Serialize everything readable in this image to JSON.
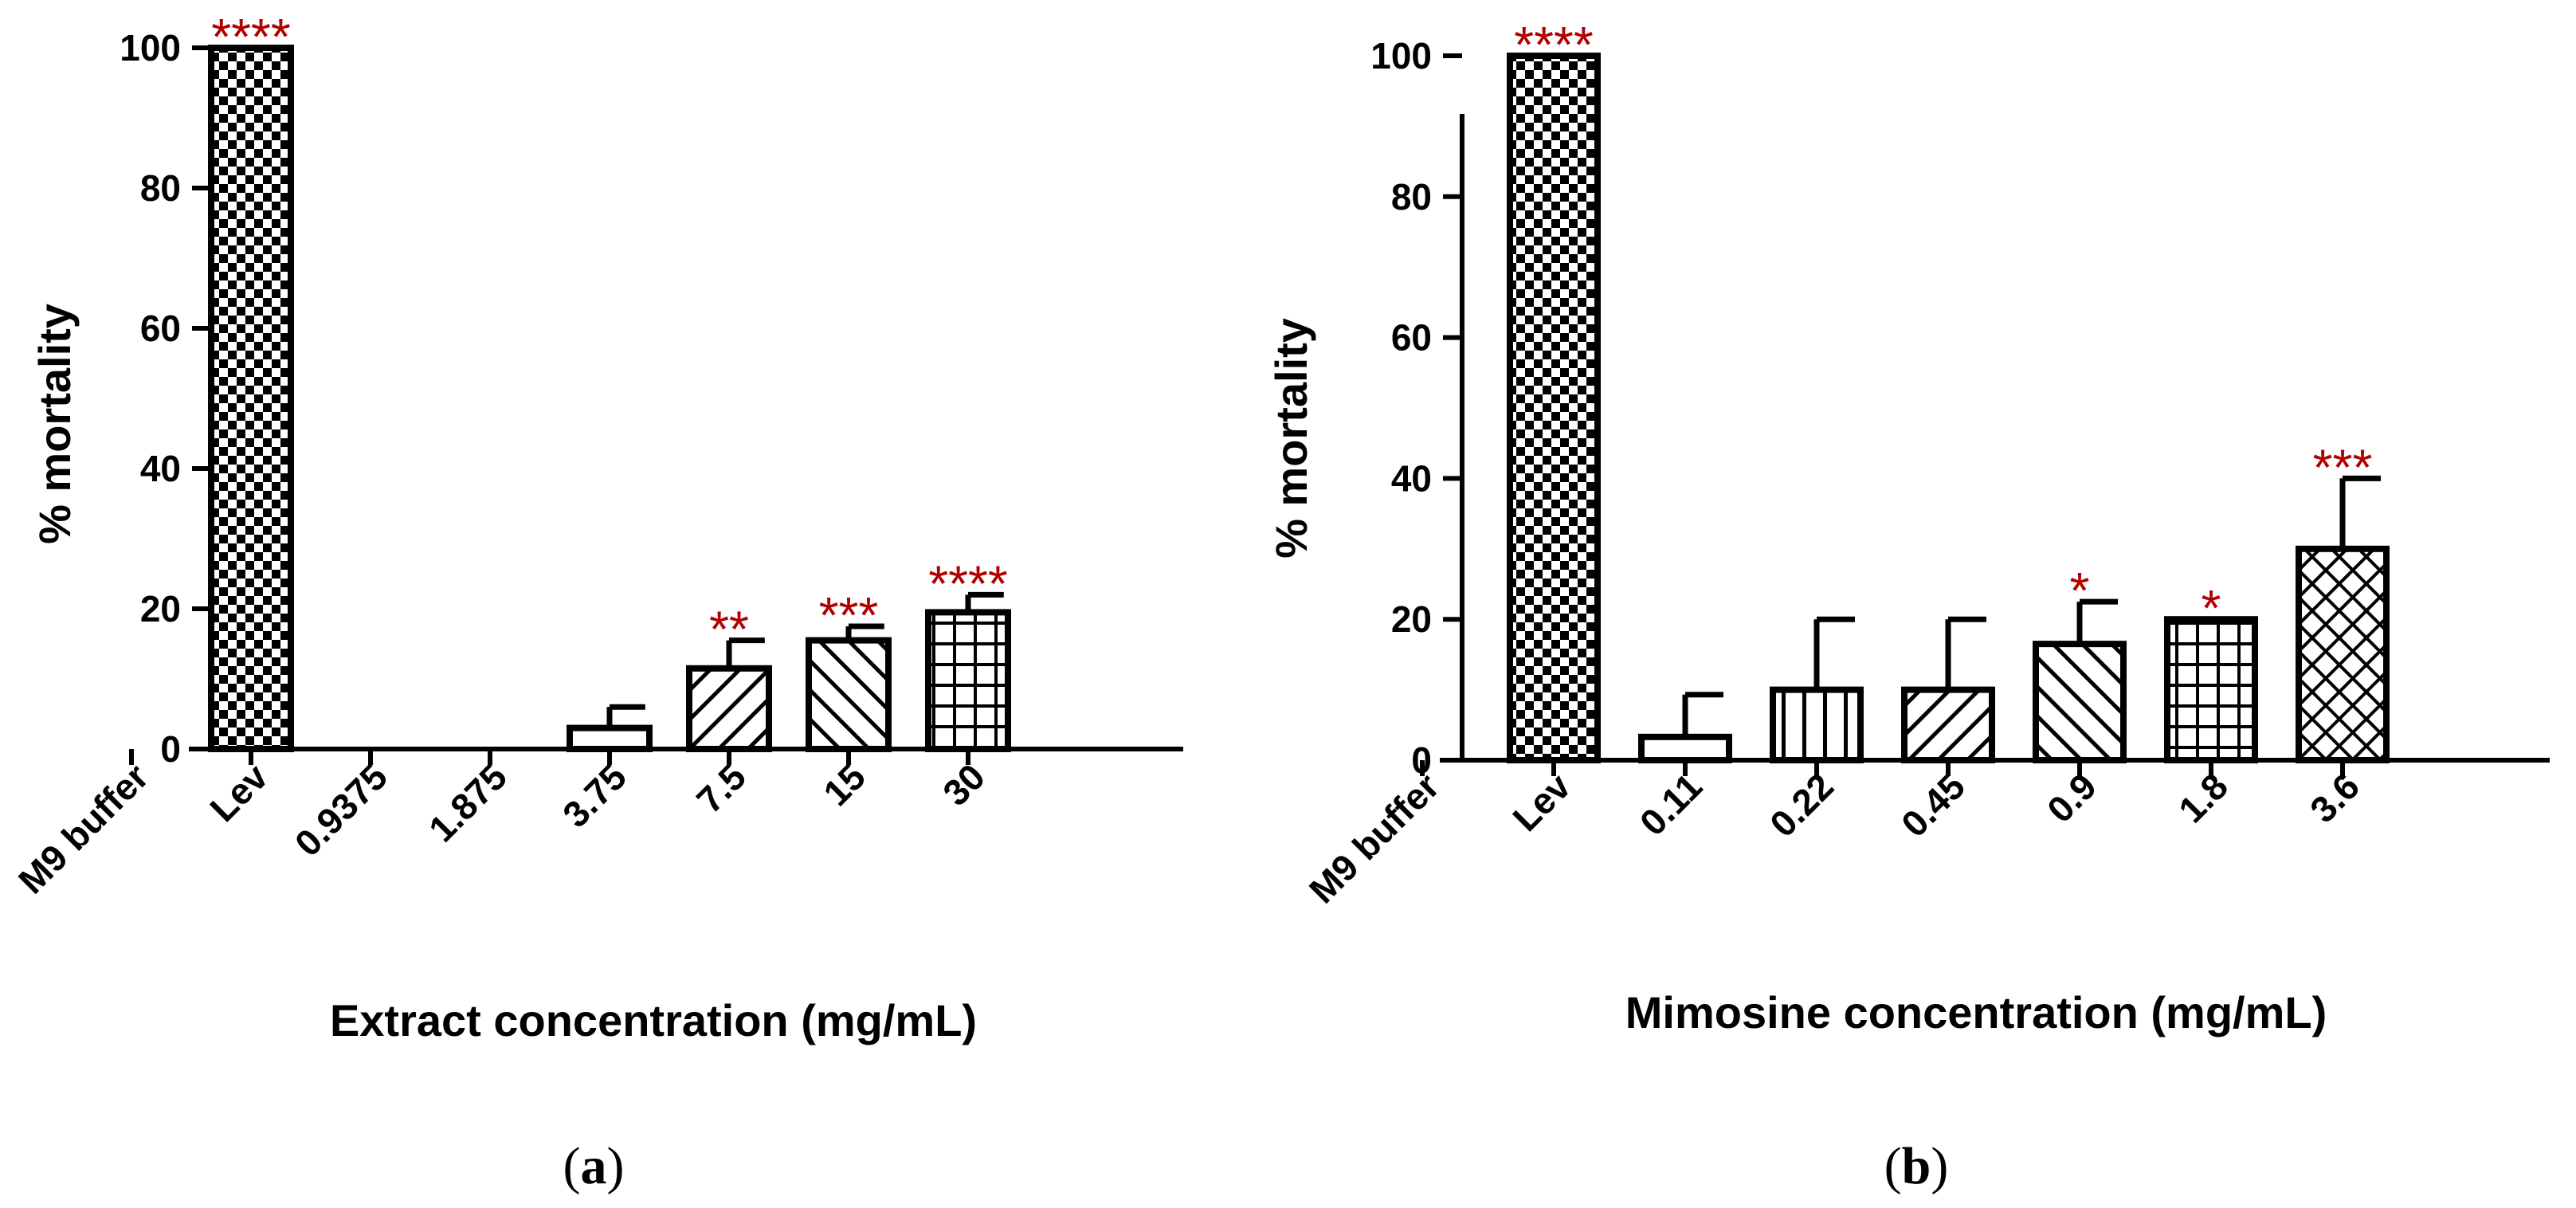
{
  "chart_data": [
    {
      "type": "bar",
      "panel_label": "a",
      "ylabel": "% mortality",
      "xlabel": "Extract concentration (mg/mL)",
      "ylim": [
        0,
        100
      ],
      "yticks": [
        "0",
        "20",
        "40",
        "60",
        "80",
        "100"
      ],
      "categories": [
        "M9 buffer",
        "Lev",
        "0.9375",
        "1.875",
        "3.75",
        "7.5",
        "15",
        "30"
      ],
      "values": [
        0,
        100,
        0,
        0,
        3,
        11.5,
        15.5,
        19.5
      ],
      "errors": [
        0,
        0,
        0,
        0,
        3,
        4,
        2,
        2.5
      ],
      "patterns": [
        "none",
        "checker",
        "none",
        "none",
        "none",
        "diag-right",
        "diag-left",
        "grid"
      ],
      "significance": [
        "",
        "****",
        "",
        "",
        "",
        "**",
        "***",
        "****"
      ]
    },
    {
      "type": "bar",
      "panel_label": "b",
      "ylabel": "% mortality",
      "xlabel": "Mimosine concentration (mg/mL)",
      "ylim": [
        0,
        100
      ],
      "yticks": [
        "0",
        "20",
        "40",
        "60",
        "80",
        "100"
      ],
      "categories": [
        "M9 buffer",
        "Lev",
        "0.11",
        "0.22",
        "0.45",
        "0.9",
        "1.8",
        "3.6"
      ],
      "values": [
        0,
        100,
        3.3,
        10,
        10,
        16.5,
        20,
        30
      ],
      "errors": [
        0,
        0,
        6,
        10,
        10,
        6,
        0,
        10
      ],
      "patterns": [
        "none",
        "checker",
        "none",
        "vertical",
        "diag-right",
        "diag-left",
        "grid",
        "crosshatch"
      ],
      "significance": [
        "",
        "****",
        "",
        "",
        "",
        "*",
        "*",
        "***"
      ]
    }
  ]
}
